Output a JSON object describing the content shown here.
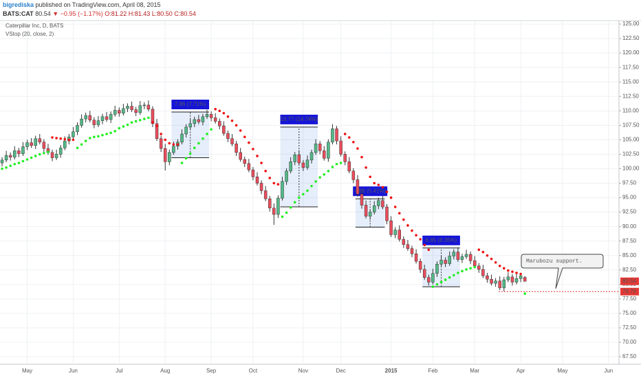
{
  "header": {
    "author": "bigrediska",
    "published": "published on TradingView.com, April 08, 2015",
    "symbol": "BATS:CAT",
    "last": "80.54",
    "arrow": "▼",
    "change": "−0.95 (−1.17%)",
    "ohlc": "O:81.22 H:81.43 L:80.50 C:80.54"
  },
  "chart_data": {
    "type": "candlestick",
    "title": "Caterpillar Inc, D, BATS",
    "subtitle": "VStop (20, close, 2)",
    "up_color": "#53b987",
    "down_color": "#eb4d5c",
    "stop_up_color": "#22ee22",
    "stop_down_color": "#ee1111",
    "grid": true,
    "ylim": [
      66.2,
      125.6
    ],
    "yticks": [
      {
        "value": 67.5,
        "label": "67.50"
      },
      {
        "value": 70,
        "label": "70.00"
      },
      {
        "value": 72.5,
        "label": "72.50"
      },
      {
        "value": 75,
        "label": "75.00"
      },
      {
        "value": 77.5,
        "label": "77.50"
      },
      {
        "value": 80,
        "label": "80.00"
      },
      {
        "value": 82.5,
        "label": "82.50"
      },
      {
        "value": 85,
        "label": "85.00"
      },
      {
        "value": 87.5,
        "label": "87.50"
      },
      {
        "value": 90,
        "label": "90.00"
      },
      {
        "value": 92.5,
        "label": "92.50"
      },
      {
        "value": 95,
        "label": "95.00"
      },
      {
        "value": 97.5,
        "label": "97.50"
      },
      {
        "value": 100,
        "label": "100.00"
      },
      {
        "value": 102.5,
        "label": "102.50"
      },
      {
        "value": 105,
        "label": "105.00"
      },
      {
        "value": 107.5,
        "label": "107.50"
      },
      {
        "value": 110,
        "label": "110.00"
      },
      {
        "value": 112.5,
        "label": "112.50"
      },
      {
        "value": 115,
        "label": "115.00"
      },
      {
        "value": 117.5,
        "label": "117.50"
      },
      {
        "value": 120,
        "label": "120.00"
      },
      {
        "value": 122.5,
        "label": "122.50"
      },
      {
        "value": 125,
        "label": "125.00"
      }
    ],
    "categories": [
      null,
      null,
      null,
      null,
      null,
      null,
      "May",
      null,
      null,
      null,
      null,
      null,
      null,
      null,
      null,
      null,
      null,
      "Jun",
      null,
      null,
      null,
      null,
      null,
      null,
      null,
      null,
      null,
      null,
      "Jul",
      null,
      null,
      null,
      null,
      null,
      null,
      null,
      null,
      null,
      null,
      "Aug",
      null,
      null,
      null,
      null,
      null,
      null,
      null,
      null,
      null,
      null,
      "Sep",
      null,
      null,
      null,
      null,
      null,
      null,
      null,
      null,
      null,
      "Oct",
      null,
      null,
      null,
      null,
      null,
      null,
      null,
      null,
      null,
      null,
      null,
      "Nov",
      null,
      null,
      null,
      null,
      null,
      null,
      null,
      null,
      "Dec",
      null,
      null,
      null,
      null,
      null,
      null,
      null,
      null,
      null,
      null,
      null,
      "2015",
      null,
      null,
      null,
      null,
      null,
      null,
      null,
      null,
      null,
      "Feb",
      null,
      null,
      null,
      null,
      null,
      null,
      null,
      null,
      null,
      "Mar",
      null,
      null,
      null,
      null,
      null,
      null,
      null,
      null,
      null,
      null,
      "Apr",
      null,
      null,
      null,
      null,
      null,
      null,
      null,
      null,
      null,
      "May",
      null,
      null,
      null,
      null,
      null,
      null,
      null,
      null,
      null,
      null,
      "Jun",
      null,
      null
    ],
    "open": [
      101.0,
      101.5,
      102.3,
      102.0,
      103.1,
      102.6,
      103.8,
      104.5,
      104.0,
      105.2,
      104.6,
      103.5,
      102.8,
      101.9,
      102.5,
      103.6,
      104.8,
      105.5,
      106.4,
      107.5,
      108.6,
      109.2,
      108.4,
      107.6,
      108.3,
      109.0,
      108.5,
      109.4,
      110.1,
      109.6,
      110.4,
      110.8,
      110.2,
      109.7,
      110.9,
      111.0,
      110.3,
      107.8,
      105.2,
      103.5,
      101.2,
      102.8,
      103.9,
      104.6,
      106.0,
      107.2,
      107.8,
      108.5,
      108.1,
      109.0,
      109.4,
      108.8,
      108.2,
      107.4,
      106.1,
      105.2,
      104.3,
      102.8,
      101.6,
      100.9,
      99.8,
      98.6,
      97.5,
      96.2,
      94.8,
      93.2,
      92.1,
      94.9,
      97.8,
      99.6,
      101.2,
      102.4,
      101.0,
      100.2,
      101.5,
      102.8,
      104.3,
      103.1,
      101.8,
      104.6,
      106.9,
      104.8,
      102.5,
      101.2,
      99.6,
      98.1,
      95.6,
      93.7,
      91.8,
      92.5,
      93.6,
      94.5,
      93.4,
      91.0,
      88.6,
      89.4,
      87.8,
      86.9,
      86.2,
      85.3,
      84.0,
      82.6,
      81.2,
      80.4,
      81.9,
      83.5,
      84.2,
      83.6,
      84.9,
      85.6,
      84.3,
      84.8,
      85.2,
      84.1,
      83.2,
      82.6,
      81.5,
      80.9,
      80.2,
      80.6,
      79.4,
      80.8,
      81.3,
      80.4,
      81.0,
      81.22,
      null,
      null,
      null,
      null,
      null,
      null,
      null,
      null,
      null,
      null,
      null,
      null,
      null,
      null,
      null,
      null,
      null,
      null,
      null,
      null,
      null,
      null
    ],
    "high": [
      102.0,
      103.1,
      102.8,
      103.9,
      103.6,
      104.6,
      105.0,
      105.3,
      105.7,
      106.0,
      105.1,
      104.3,
      103.3,
      103.3,
      104.1,
      105.6,
      106.0,
      107.2,
      108.0,
      109.4,
      109.7,
      110.0,
      108.9,
      109.1,
      109.5,
      109.8,
      109.9,
      110.9,
      110.6,
      111.2,
      111.3,
      111.6,
      110.7,
      111.7,
      111.5,
      111.8,
      110.8,
      108.6,
      105.7,
      104.3,
      103.3,
      104.7,
      105.1,
      106.8,
      107.7,
      108.6,
      109.0,
      109.3,
      109.5,
      110.2,
      109.9,
      109.6,
      108.7,
      108.2,
      106.6,
      106.0,
      104.8,
      103.6,
      102.1,
      101.7,
      100.3,
      99.4,
      98.0,
      97.0,
      95.3,
      94.0,
      95.4,
      98.6,
      100.1,
      102.0,
      102.9,
      103.2,
      101.5,
      102.3,
      103.3,
      105.1,
      104.8,
      103.9,
      105.1,
      107.7,
      107.4,
      105.6,
      103.0,
      102.0,
      100.1,
      98.9,
      96.1,
      94.5,
      93.0,
      94.4,
      95.0,
      95.3,
      93.9,
      91.8,
      89.9,
      90.2,
      88.3,
      87.7,
      86.7,
      86.1,
      84.5,
      83.4,
      81.7,
      82.7,
      84.0,
      85.0,
      84.7,
      85.7,
      86.1,
      86.4,
      85.3,
      86.0,
      85.7,
      84.9,
      83.7,
      83.4,
      82.0,
      81.7,
      81.1,
      81.4,
      81.3,
      82.1,
      81.8,
      81.8,
      82.0,
      81.43,
      null,
      null,
      null,
      null,
      null,
      null,
      null,
      null,
      null,
      null,
      null,
      null,
      null,
      null,
      null,
      null,
      null,
      null,
      null,
      null,
      null,
      null
    ],
    "low": [
      100.4,
      101.1,
      101.4,
      101.6,
      102.0,
      102.2,
      103.2,
      103.6,
      103.4,
      104.2,
      102.9,
      102.4,
      101.3,
      101.5,
      101.9,
      103.2,
      104.2,
      105.1,
      105.8,
      107.1,
      108.0,
      108.0,
      107.0,
      107.2,
      107.7,
      108.1,
      107.9,
      109.0,
      109.0,
      109.2,
      109.8,
      109.8,
      109.1,
      109.3,
      110.3,
      109.9,
      107.2,
      104.8,
      102.9,
      99.7,
      100.6,
      102.4,
      103.3,
      104.2,
      105.4,
      106.8,
      107.2,
      107.7,
      107.5,
      108.6,
      108.2,
      107.8,
      106.8,
      105.7,
      104.6,
      103.9,
      102.2,
      101.2,
      100.3,
      99.4,
      98.0,
      97.1,
      95.6,
      94.4,
      92.6,
      90.3,
      91.5,
      94.5,
      97.2,
      99.2,
      100.6,
      100.6,
      99.6,
      99.8,
      100.9,
      102.4,
      102.5,
      101.4,
      101.2,
      104.2,
      104.2,
      102.1,
      100.6,
      99.2,
      97.5,
      95.2,
      93.1,
      91.4,
      91.2,
      92.1,
      93.0,
      93.0,
      90.4,
      88.2,
      88.0,
      87.4,
      86.3,
      85.8,
      84.7,
      83.6,
      82.0,
      80.8,
      79.8,
      80.0,
      81.3,
      83.1,
      83.0,
      83.2,
      84.3,
      83.9,
      83.7,
      84.4,
      83.5,
      82.8,
      82.0,
      81.1,
      80.3,
      79.8,
      79.6,
      79.0,
      78.8,
      80.4,
      79.8,
      80.0,
      80.4,
      80.5,
      null,
      null,
      null,
      null,
      null,
      null,
      null,
      null,
      null,
      null,
      null,
      null,
      null,
      null,
      null,
      null,
      null,
      null,
      null,
      null,
      null,
      null
    ],
    "close": [
      101.5,
      102.3,
      102.0,
      103.1,
      102.6,
      103.8,
      104.5,
      104.0,
      105.2,
      104.6,
      103.5,
      102.8,
      101.9,
      102.5,
      103.6,
      104.8,
      105.5,
      106.4,
      107.5,
      108.6,
      109.2,
      108.4,
      107.6,
      108.3,
      109.0,
      108.5,
      109.4,
      110.1,
      109.6,
      110.4,
      110.8,
      110.2,
      109.7,
      110.9,
      111.0,
      110.3,
      107.8,
      105.2,
      103.5,
      101.2,
      102.8,
      103.9,
      104.6,
      106.0,
      107.2,
      107.8,
      108.5,
      108.1,
      109.0,
      109.4,
      108.8,
      108.2,
      107.4,
      106.1,
      105.2,
      104.3,
      102.8,
      101.6,
      100.9,
      99.8,
      98.6,
      97.5,
      96.2,
      94.8,
      93.2,
      92.1,
      94.9,
      97.8,
      99.6,
      101.2,
      102.4,
      101.0,
      100.2,
      101.5,
      102.8,
      104.3,
      103.1,
      101.8,
      104.6,
      106.9,
      104.8,
      102.5,
      101.2,
      99.6,
      98.1,
      95.6,
      93.7,
      91.8,
      92.5,
      93.6,
      94.5,
      93.4,
      91.0,
      88.6,
      89.4,
      87.8,
      86.9,
      86.2,
      85.3,
      84.0,
      82.6,
      81.2,
      80.4,
      81.9,
      83.5,
      84.2,
      83.6,
      84.9,
      85.6,
      84.3,
      84.8,
      85.2,
      84.1,
      83.2,
      82.6,
      81.5,
      80.9,
      80.2,
      80.6,
      79.4,
      80.8,
      81.3,
      80.4,
      81.0,
      81.49,
      80.54,
      null,
      null,
      null,
      null,
      null,
      null,
      null,
      null,
      null,
      null,
      null,
      null,
      null,
      null,
      null,
      null,
      null,
      null,
      null,
      null,
      null,
      null
    ],
    "stop_up": [
      100.0,
      100.2,
      100.5,
      100.8,
      101.0,
      101.3,
      101.6,
      101.9,
      102.2,
      102.5,
      102.7,
      102.9,
      null,
      null,
      null,
      null,
      null,
      null,
      103.6,
      104.2,
      104.8,
      105.3,
      105.5,
      105.6,
      105.8,
      106.0,
      106.2,
      106.5,
      107.0,
      107.3,
      107.6,
      108.0,
      108.2,
      108.4,
      108.6,
      108.8,
      null,
      null,
      null,
      null,
      null,
      null,
      null,
      101.0,
      101.8,
      102.6,
      103.6,
      104.4,
      105.2,
      106.0,
      106.8,
      null,
      null,
      null,
      null,
      null,
      null,
      null,
      null,
      null,
      null,
      null,
      null,
      null,
      null,
      null,
      null,
      91.7,
      92.4,
      93.3,
      94.2,
      95.0,
      95.6,
      96.2,
      97.0,
      97.8,
      98.5,
      99.0,
      99.6,
      100.3,
      100.8,
      101.0,
      null,
      null,
      null,
      null,
      null,
      null,
      null,
      null,
      null,
      null,
      null,
      null,
      null,
      null,
      null,
      null,
      null,
      null,
      null,
      null,
      null,
      79.6,
      80.0,
      80.4,
      80.8,
      81.2,
      81.6,
      82.0,
      82.3,
      82.6,
      82.8,
      83.0,
      null,
      null,
      null,
      null,
      null,
      null,
      null,
      null,
      null,
      null,
      null,
      78.4,
      null,
      null,
      null,
      null,
      null,
      null,
      null,
      null,
      null,
      null,
      null,
      null,
      null,
      null,
      null,
      null,
      null,
      null,
      null,
      null,
      null,
      null
    ],
    "stop_down": [
      null,
      null,
      null,
      null,
      null,
      null,
      null,
      null,
      null,
      null,
      null,
      null,
      105.4,
      105.3,
      105.2,
      105.1,
      105.0,
      105.0,
      null,
      null,
      null,
      null,
      null,
      null,
      null,
      null,
      null,
      null,
      null,
      null,
      null,
      null,
      null,
      null,
      null,
      null,
      108.0,
      107.4,
      106.0,
      105.0,
      104.4,
      104.2,
      104.2,
      null,
      null,
      null,
      null,
      null,
      null,
      null,
      null,
      110.3,
      110.0,
      109.6,
      109.0,
      108.3,
      107.5,
      106.6,
      105.5,
      104.5,
      103.4,
      102.2,
      101.0,
      99.6,
      98.4,
      97.5,
      97.3,
      null,
      null,
      null,
      null,
      null,
      null,
      null,
      null,
      null,
      null,
      null,
      null,
      null,
      null,
      null,
      106.0,
      105.4,
      104.6,
      103.5,
      102.0,
      100.2,
      98.6,
      97.5,
      97.2,
      96.8,
      96.0,
      95.0,
      93.4,
      92.3,
      91.2,
      90.2,
      89.3,
      88.5,
      87.8,
      86.8,
      86.0,
      null,
      null,
      null,
      null,
      null,
      null,
      null,
      null,
      null,
      null,
      null,
      86.0,
      85.6,
      85.0,
      84.4,
      83.8,
      83.2,
      82.8,
      82.4,
      82.2,
      82.0,
      81.8,
      null,
      null,
      null,
      null,
      null,
      null,
      null,
      null,
      null,
      null,
      null,
      null,
      null,
      null,
      null,
      null,
      null,
      null,
      null,
      null,
      null,
      null,
      null
    ],
    "measures": [
      {
        "label": "7.86 (7.71%)",
        "from": 41,
        "to": 49,
        "low": 101.9,
        "high": 109.8
      },
      {
        "label": "13.77 (14.74%)",
        "from": 67,
        "to": 75,
        "low": 93.4,
        "high": 107.2
      },
      {
        "label": "4.86 (5.41%)",
        "from": 85,
        "to": 91,
        "low": 89.9,
        "high": 94.8
      },
      {
        "label": "6.65 (8.35%)",
        "from": 101,
        "to": 109,
        "low": 79.6,
        "high": 86.3
      }
    ],
    "callout": "Marubozu support.",
    "last_price": 80.54,
    "support_level": 78.76
  }
}
